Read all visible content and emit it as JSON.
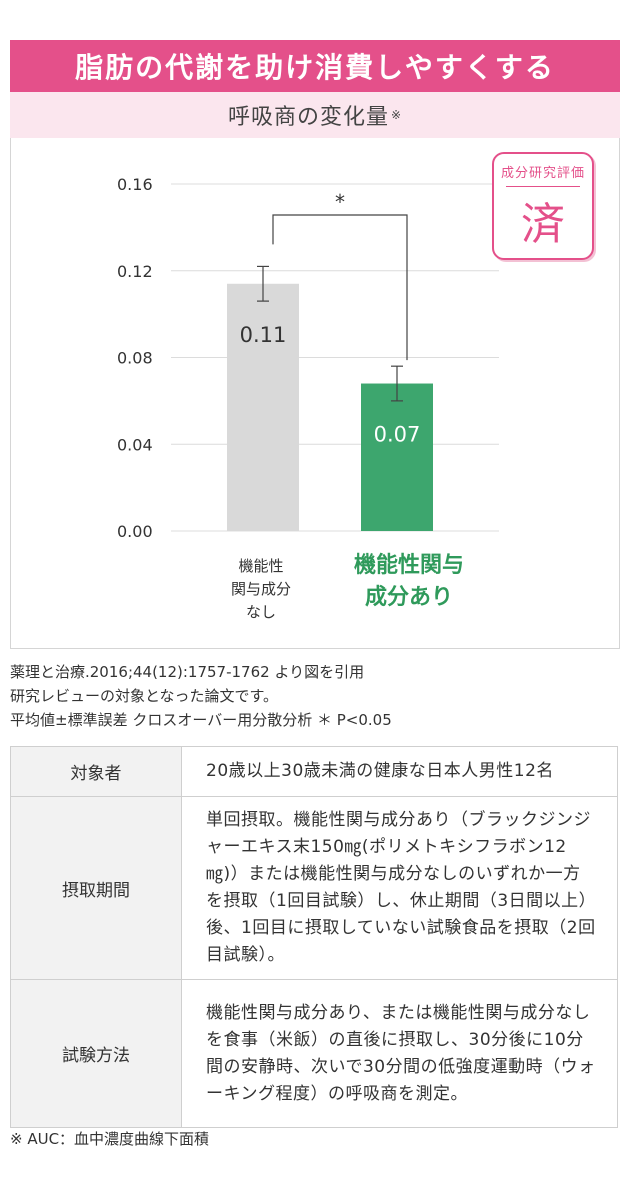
{
  "header": {
    "title": "脂肪の代謝を助け消費しやすくする",
    "subtitle": "呼吸商の変化量",
    "subtitle_mark": "※"
  },
  "stamp": {
    "top_text": "成分研究評価",
    "kanji": "済"
  },
  "chart_data": {
    "type": "bar",
    "title": "呼吸商の変化量",
    "categories": [
      "機能性\n関与成分\nなし",
      "機能性関与\n成分あり"
    ],
    "values": [
      0.11,
      0.07
    ],
    "bar_values_exact": [
      0.114,
      0.068
    ],
    "error": [
      0.008,
      0.008
    ],
    "data_labels": [
      "0.11",
      "0.07"
    ],
    "bar_colors": [
      "#d9d9d9",
      "#3da66e"
    ],
    "category_colors": [
      "#333333",
      "#2f9a5b"
    ],
    "ylim": [
      0,
      0.16
    ],
    "yticks": [
      "0.00",
      "0.04",
      "0.08",
      "0.12",
      "0.16"
    ],
    "grid": true,
    "significance": "*"
  },
  "references": [
    "薬理と治療.2016;44(12):1757-1762 より図を引用",
    "研究レビューの対象となった論文です。",
    "平均値±標準誤差  クロスオーバー用分散分析   ＊ P<0.05"
  ],
  "table": {
    "rows": [
      {
        "label": "対象者",
        "value": "20歳以上30歳未満の健康な日本人男性12名"
      },
      {
        "label": "摂取期間",
        "value": "単回摂取。機能性関与成分あり（ブラックジンジャーエキス末150㎎(ポリメトキシフラボン12㎎)）または機能性関与成分なしのいずれか一方を摂取（1回目試験）し、休止期間（3日間以上）後、1回目に摂取していない試験食品を摂取（2回目試験）。"
      },
      {
        "label": "試験方法",
        "value": "機能性関与成分あり、または機能性関与成分なしを食事（米飯）の直後に摂取し、30分後に10分間の安静時、次いで30分間の低強度運動時（ウォーキング程度）の呼吸商を測定。"
      }
    ]
  },
  "footnote": "※ AUC：血中濃度曲線下面積"
}
